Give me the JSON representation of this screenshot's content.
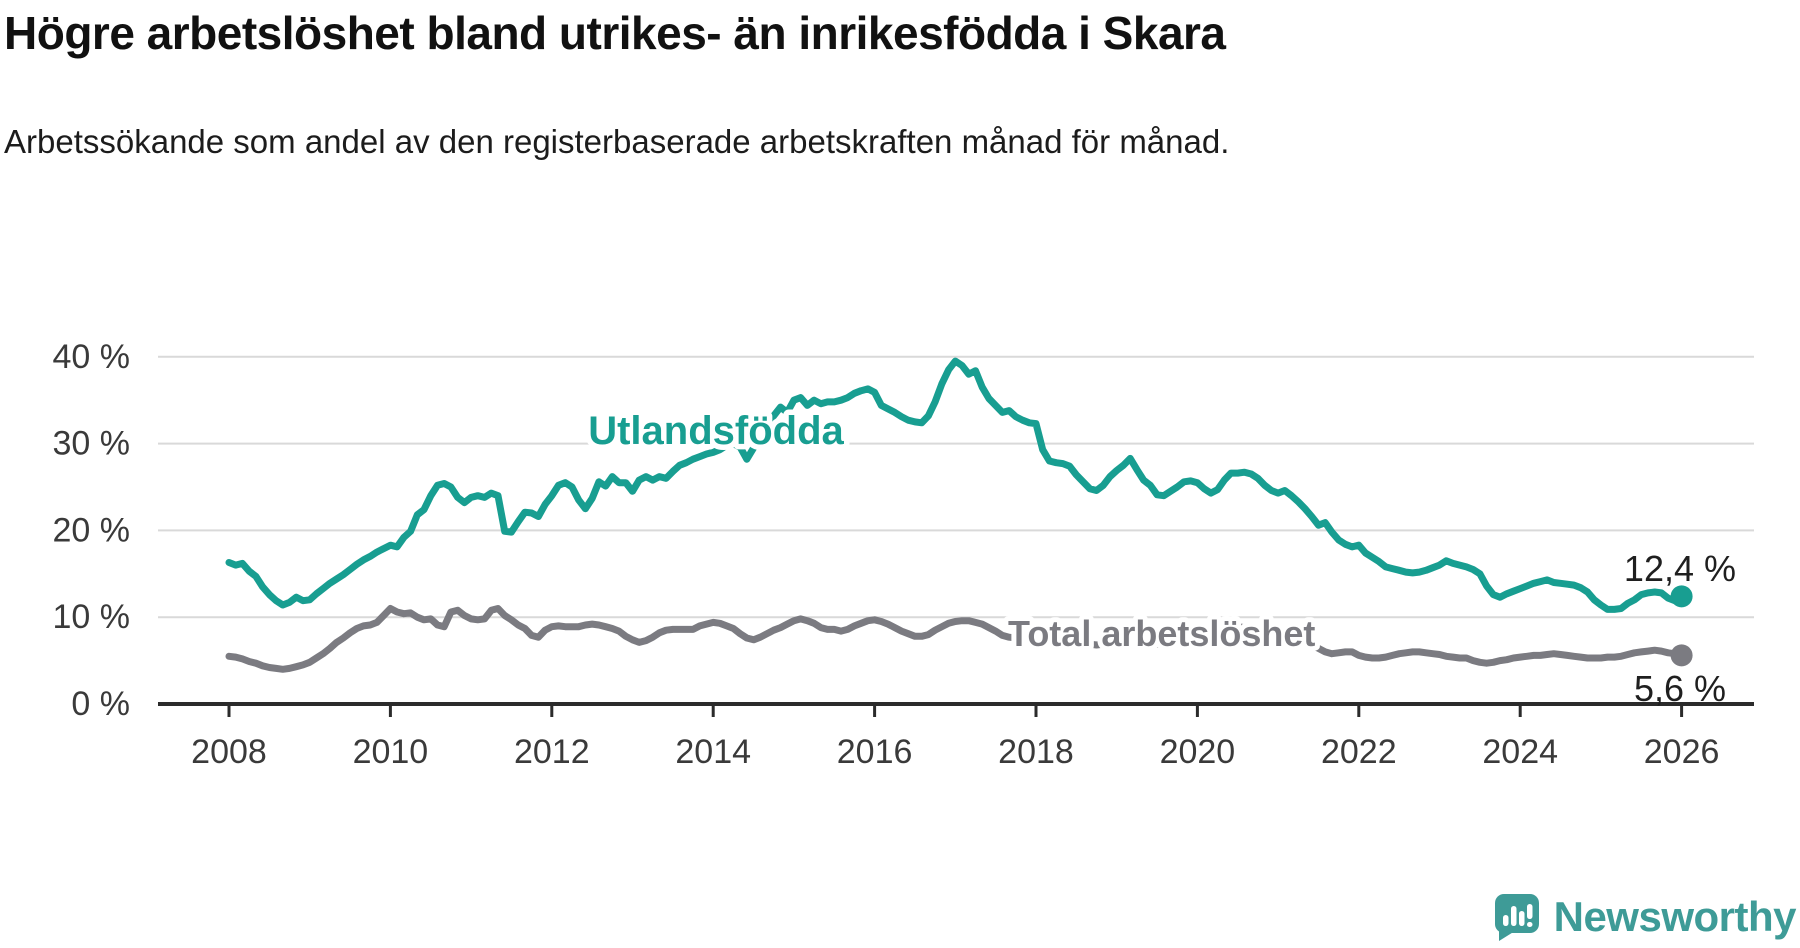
{
  "header": {
    "title": "Högre arbetslöshet bland utrikes- än inrikesfödda i Skara",
    "subtitle": "Arbetssökande som andel av den registerbaserade arbetskraften månad för månad."
  },
  "footer": {
    "brand": "Newsworthy"
  },
  "colors": {
    "foreign": "#189E91",
    "total": "#7B7B81",
    "axis": "#2B2B2B",
    "grid": "#D9D9D9",
    "tick_text": "#3A3A3A",
    "end_label_text": "#1F1F1F",
    "logo": "#3E9B97",
    "background": "#FFFFFF"
  },
  "chart_data": {
    "type": "line",
    "title": "Högre arbetslöshet bland utrikes- än inrikesfödda i Skara",
    "subtitle": "Arbetssökande som andel av den registerbaserade arbetskraften månad för månad.",
    "x_unit": "monthly",
    "x_start_year": 2008,
    "x_end_year": 2026,
    "ylim": [
      0,
      42
    ],
    "grid": "horizontal",
    "yticks": [
      {
        "value": 0,
        "label": "0 %"
      },
      {
        "value": 10,
        "label": "10 %"
      },
      {
        "value": 20,
        "label": "20 %"
      },
      {
        "value": 30,
        "label": "30 %"
      },
      {
        "value": 40,
        "label": "40 %"
      }
    ],
    "xticks": [
      {
        "value": 2008,
        "label": "2008"
      },
      {
        "value": 2010,
        "label": "2010"
      },
      {
        "value": 2012,
        "label": "2012"
      },
      {
        "value": 2014,
        "label": "2014"
      },
      {
        "value": 2016,
        "label": "2016"
      },
      {
        "value": 2018,
        "label": "2018"
      },
      {
        "value": 2020,
        "label": "2020"
      },
      {
        "value": 2022,
        "label": "2022"
      },
      {
        "value": 2024,
        "label": "2024"
      },
      {
        "value": 2026,
        "label": "2026"
      }
    ],
    "series": [
      {
        "name": "Total arbetslöshet",
        "color_key": "total",
        "end_label": "5,6 %",
        "values": [
          5.5,
          5.4,
          5.2,
          4.9,
          4.7,
          4.4,
          4.2,
          4.1,
          4.0,
          4.1,
          4.3,
          4.5,
          4.8,
          5.3,
          5.8,
          6.4,
          7.1,
          7.6,
          8.2,
          8.7,
          9.0,
          9.1,
          9.4,
          10.2,
          11.0,
          10.6,
          10.4,
          10.5,
          10.0,
          9.7,
          9.8,
          9.1,
          8.9,
          10.6,
          10.8,
          10.2,
          9.8,
          9.7,
          9.8,
          10.8,
          11.0,
          10.2,
          9.7,
          9.1,
          8.7,
          7.9,
          7.7,
          8.5,
          8.9,
          9.0,
          8.9,
          8.9,
          8.9,
          9.1,
          9.2,
          9.1,
          8.9,
          8.7,
          8.4,
          7.8,
          7.4,
          7.1,
          7.3,
          7.7,
          8.2,
          8.5,
          8.6,
          8.6,
          8.6,
          8.6,
          9.0,
          9.2,
          9.4,
          9.3,
          9.0,
          8.7,
          8.1,
          7.6,
          7.4,
          7.7,
          8.1,
          8.5,
          8.8,
          9.2,
          9.6,
          9.8,
          9.6,
          9.3,
          8.8,
          8.6,
          8.6,
          8.4,
          8.6,
          9.0,
          9.3,
          9.6,
          9.7,
          9.5,
          9.2,
          8.8,
          8.4,
          8.1,
          7.8,
          7.8,
          8.0,
          8.5,
          8.9,
          9.3,
          9.5,
          9.6,
          9.6,
          9.4,
          9.2,
          8.8,
          8.4,
          7.9,
          7.7,
          7.6,
          7.8,
          8.0,
          8.1,
          8.0,
          7.8,
          7.6,
          7.4,
          7.2,
          7.1,
          7.0,
          6.9,
          6.8,
          6.9,
          7.0,
          7.1,
          7.1,
          7.0,
          6.9,
          6.8,
          6.8,
          6.9,
          6.8,
          6.8,
          6.9,
          7.0,
          7.1,
          7.2,
          7.2,
          7.5,
          8.1,
          8.5,
          8.8,
          8.9,
          8.8,
          8.6,
          8.4,
          8.2,
          8.1,
          8.0,
          7.9,
          7.7,
          7.4,
          7.1,
          6.8,
          6.4,
          6.0,
          5.8,
          5.9,
          6.0,
          6.0,
          5.6,
          5.4,
          5.3,
          5.3,
          5.4,
          5.6,
          5.8,
          5.9,
          6.0,
          6.0,
          5.9,
          5.8,
          5.7,
          5.5,
          5.4,
          5.3,
          5.3,
          5.0,
          4.8,
          4.7,
          4.8,
          5.0,
          5.1,
          5.3,
          5.4,
          5.5,
          5.6,
          5.6,
          5.7,
          5.8,
          5.7,
          5.6,
          5.5,
          5.4,
          5.3,
          5.3,
          5.3,
          5.4,
          5.4,
          5.5,
          5.7,
          5.9,
          6.0,
          6.1,
          6.2,
          6.1,
          5.9,
          5.8,
          5.6
        ]
      },
      {
        "name": "Utlandsfödda",
        "color_key": "foreign",
        "end_label": "12,4 %",
        "values": [
          16.3,
          16.0,
          16.2,
          15.3,
          14.7,
          13.5,
          12.6,
          11.9,
          11.4,
          11.7,
          12.3,
          11.9,
          12.0,
          12.7,
          13.3,
          13.9,
          14.4,
          14.9,
          15.5,
          16.1,
          16.6,
          17.0,
          17.5,
          17.9,
          18.3,
          18.1,
          19.2,
          19.9,
          21.8,
          22.4,
          24.0,
          25.2,
          25.4,
          25.0,
          23.8,
          23.2,
          23.8,
          24.0,
          23.8,
          24.3,
          24.0,
          19.9,
          19.8,
          21.0,
          22.1,
          22.0,
          21.6,
          23.0,
          24.0,
          25.2,
          25.5,
          25.0,
          23.5,
          22.5,
          23.7,
          25.6,
          25.1,
          26.2,
          25.5,
          25.5,
          24.5,
          25.8,
          26.2,
          25.8,
          26.2,
          26.0,
          26.8,
          27.5,
          27.8,
          28.2,
          28.5,
          28.8,
          29.0,
          29.3,
          29.8,
          30.0,
          29.6,
          28.2,
          29.5,
          30.8,
          31.8,
          33.2,
          34.2,
          33.6,
          35.0,
          35.3,
          34.4,
          35.0,
          34.6,
          34.8,
          34.8,
          35.0,
          35.3,
          35.8,
          36.1,
          36.3,
          35.9,
          34.4,
          34.0,
          33.6,
          33.1,
          32.7,
          32.5,
          32.4,
          33.2,
          34.8,
          36.9,
          38.5,
          39.5,
          39.0,
          38.0,
          38.4,
          36.5,
          35.2,
          34.4,
          33.6,
          33.8,
          33.1,
          32.7,
          32.4,
          32.3,
          29.3,
          28.0,
          27.8,
          27.7,
          27.4,
          26.4,
          25.6,
          24.8,
          24.6,
          25.2,
          26.2,
          26.9,
          27.5,
          28.3,
          27.0,
          25.8,
          25.2,
          24.1,
          24.0,
          24.5,
          25.0,
          25.6,
          25.7,
          25.5,
          24.8,
          24.3,
          24.7,
          25.8,
          26.6,
          26.6,
          26.7,
          26.5,
          26.0,
          25.2,
          24.6,
          24.3,
          24.6,
          24.0,
          23.3,
          22.5,
          21.6,
          20.6,
          20.9,
          19.8,
          18.9,
          18.4,
          18.1,
          18.3,
          17.4,
          16.9,
          16.4,
          15.8,
          15.6,
          15.4,
          15.2,
          15.1,
          15.2,
          15.4,
          15.7,
          16.0,
          16.5,
          16.2,
          16.0,
          15.8,
          15.5,
          15.0,
          13.6,
          12.6,
          12.3,
          12.7,
          13.0,
          13.3,
          13.6,
          13.9,
          14.1,
          14.3,
          14.0,
          13.9,
          13.8,
          13.7,
          13.4,
          12.9,
          12.0,
          11.4,
          10.9,
          10.9,
          11.0,
          11.6,
          12.0,
          12.6,
          12.8,
          12.9,
          12.8,
          12.2,
          11.9,
          12.4
        ]
      }
    ],
    "legend_position": "inline-labels"
  }
}
